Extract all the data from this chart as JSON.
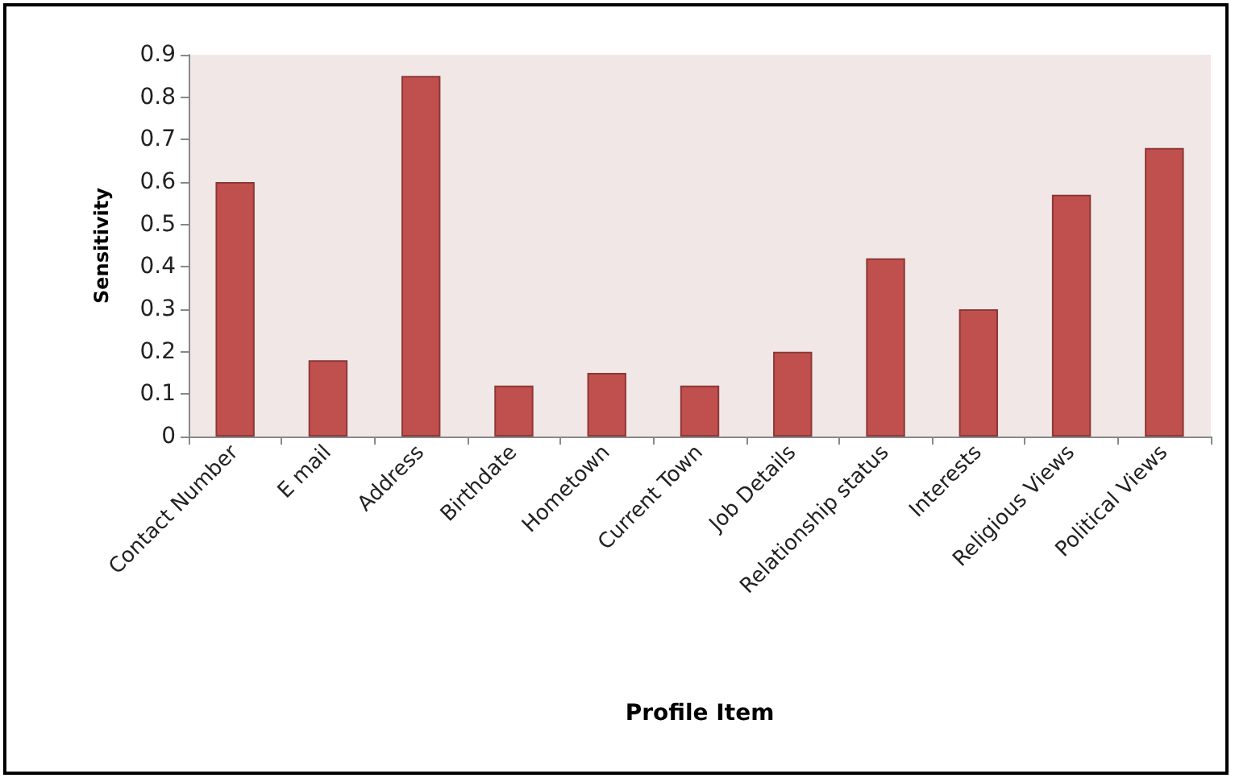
{
  "chart_data": {
    "type": "bar",
    "xlabel": "Profile Item",
    "ylabel": "Sensitivity",
    "categories": [
      "Contact Number",
      "E mail",
      "Address",
      "Birthdate",
      "Hometown",
      "Current Town",
      "Job Details",
      "Relationship status",
      "Interests",
      "Religious Views",
      "Political Views"
    ],
    "values": [
      0.6,
      0.18,
      0.85,
      0.12,
      0.15,
      0.12,
      0.2,
      0.42,
      0.3,
      0.57,
      0.68
    ],
    "color": "#c0504d",
    "ylim": [
      0,
      0.9
    ],
    "yticks": [
      0,
      0.1,
      0.2,
      0.3,
      0.4,
      0.5,
      0.6,
      0.7,
      0.8,
      0.9
    ],
    "grid": false
  }
}
